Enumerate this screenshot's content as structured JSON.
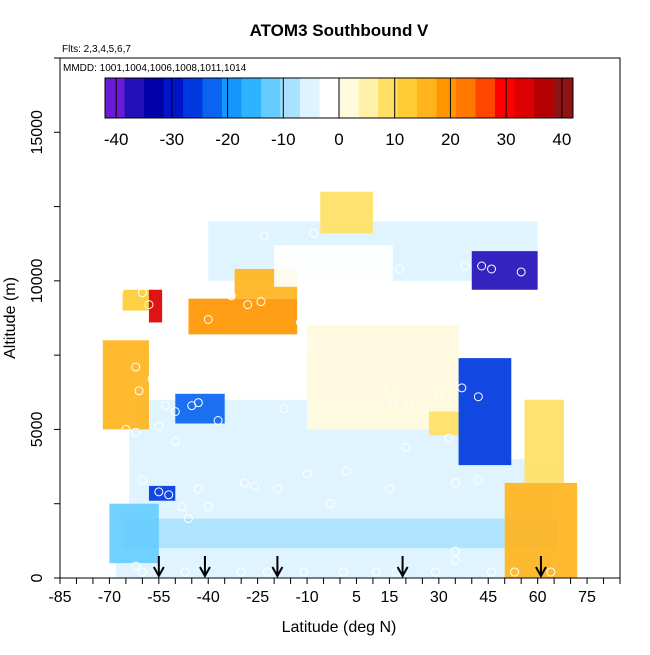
{
  "chart_data": {
    "type": "heatmap",
    "title": "ATOM3 Southbound V",
    "flights_label": "Flts: 2,3,4,5,6,7",
    "dates_label": "MMDD: 1001,1004,1006,1008,1011,1014",
    "xlabel": "Latitude (deg N)",
    "ylabel": "Altitude (m)",
    "xlim": [
      -85,
      85
    ],
    "ylim": [
      0,
      17500
    ],
    "x_ticks": [
      -85,
      -70,
      -55,
      -40,
      -25,
      -10,
      5,
      15,
      30,
      45,
      60,
      75
    ],
    "y_ticks": [
      0,
      5000,
      10000,
      15000
    ],
    "colorbar": {
      "ticks": [
        -40,
        -30,
        -20,
        -10,
        0,
        10,
        20,
        30,
        40
      ],
      "range": [
        -42,
        42
      ],
      "colors": [
        "#6a1bd6",
        "#2510b8",
        "#0000a8",
        "#0014c8",
        "#0038e0",
        "#0a64f0",
        "#1496ff",
        "#2cb4ff",
        "#66ccff",
        "#a8e2ff",
        "#ddf3ff",
        "#ffffff",
        "#fffadc",
        "#fff2a8",
        "#ffe066",
        "#ffcc33",
        "#ffb41e",
        "#ff9600",
        "#ff7800",
        "#ff4600",
        "#ff0000",
        "#dc0000",
        "#b40000",
        "#8c1414"
      ]
    },
    "surface_latitudes": [
      -55,
      -41,
      -19,
      19,
      61
    ],
    "profile_points": [
      {
        "lat": -63,
        "alt": 9900
      },
      {
        "lat": -67,
        "alt": 9700
      },
      {
        "lat": -60,
        "alt": 9600
      },
      {
        "lat": -52,
        "alt": 9800
      },
      {
        "lat": -47,
        "alt": 10400
      },
      {
        "lat": -58,
        "alt": 9200
      },
      {
        "lat": -40,
        "alt": 8700
      },
      {
        "lat": -33,
        "alt": 9500
      },
      {
        "lat": -28,
        "alt": 9200
      },
      {
        "lat": -24,
        "alt": 9300
      },
      {
        "lat": -23,
        "alt": 11500
      },
      {
        "lat": -15,
        "alt": 12600
      },
      {
        "lat": -8,
        "alt": 11600
      },
      {
        "lat": 2,
        "alt": 10400
      },
      {
        "lat": 8,
        "alt": 11000
      },
      {
        "lat": 13,
        "alt": 10400
      },
      {
        "lat": 18,
        "alt": 10400
      },
      {
        "lat": 28,
        "alt": 9300
      },
      {
        "lat": 32,
        "alt": 8800
      },
      {
        "lat": 38,
        "alt": 10500
      },
      {
        "lat": 43,
        "alt": 10500
      },
      {
        "lat": 46,
        "alt": 10400
      },
      {
        "lat": 55,
        "alt": 10300
      },
      {
        "lat": 65,
        "alt": 11800
      },
      {
        "lat": -62,
        "alt": 7100
      },
      {
        "lat": -61,
        "alt": 6300
      },
      {
        "lat": -57,
        "alt": 6700
      },
      {
        "lat": -53,
        "alt": 5800
      },
      {
        "lat": -50,
        "alt": 5600
      },
      {
        "lat": -45,
        "alt": 5800
      },
      {
        "lat": -43,
        "alt": 5900
      },
      {
        "lat": -37,
        "alt": 5300
      },
      {
        "lat": -17,
        "alt": 5700
      },
      {
        "lat": -8,
        "alt": 7900
      },
      {
        "lat": -12,
        "alt": 8600
      },
      {
        "lat": 13,
        "alt": 6500
      },
      {
        "lat": 16,
        "alt": 5900
      },
      {
        "lat": 21,
        "alt": 5900
      },
      {
        "lat": 30,
        "alt": 6100
      },
      {
        "lat": 37,
        "alt": 6400
      },
      {
        "lat": 42,
        "alt": 6100
      },
      {
        "lat": 20,
        "alt": 4400
      },
      {
        "lat": 33,
        "alt": 4700
      },
      {
        "lat": -65,
        "alt": 5000
      },
      {
        "lat": -62,
        "alt": 4900
      },
      {
        "lat": -55,
        "alt": 5100
      },
      {
        "lat": -50,
        "alt": 4600
      },
      {
        "lat": -60,
        "alt": 3300
      },
      {
        "lat": -55,
        "alt": 2900
      },
      {
        "lat": -52,
        "alt": 2800
      },
      {
        "lat": -48,
        "alt": 2400
      },
      {
        "lat": -43,
        "alt": 3000
      },
      {
        "lat": -29,
        "alt": 3200
      },
      {
        "lat": -26,
        "alt": 3100
      },
      {
        "lat": -19,
        "alt": 3000
      },
      {
        "lat": -10,
        "alt": 3500
      },
      {
        "lat": 2,
        "alt": 3600
      },
      {
        "lat": 15,
        "alt": 3000
      },
      {
        "lat": 35,
        "alt": 3200
      },
      {
        "lat": 42,
        "alt": 3300
      },
      {
        "lat": -3,
        "alt": 2500
      },
      {
        "lat": -40,
        "alt": 2400
      },
      {
        "lat": -46,
        "alt": 2000
      },
      {
        "lat": -62,
        "alt": 400
      },
      {
        "lat": -60,
        "alt": 200
      },
      {
        "lat": -47,
        "alt": 200
      },
      {
        "lat": -30,
        "alt": 200
      },
      {
        "lat": -22,
        "alt": 200
      },
      {
        "lat": -11,
        "alt": 200
      },
      {
        "lat": 1,
        "alt": 200
      },
      {
        "lat": 11,
        "alt": 200
      },
      {
        "lat": 17,
        "alt": 200
      },
      {
        "lat": 29,
        "alt": 200
      },
      {
        "lat": 35,
        "alt": 600
      },
      {
        "lat": 35,
        "alt": 900
      },
      {
        "lat": 46,
        "alt": 200
      },
      {
        "lat": 53,
        "alt": 200
      },
      {
        "lat": 64,
        "alt": 200
      }
    ],
    "v_field_sections": [
      {
        "lat_range": [
          -68,
          66
        ],
        "alt_range": [
          0,
          1000
        ],
        "value": -6
      },
      {
        "lat_range": [
          -66,
          66
        ],
        "alt_range": [
          1000,
          2000
        ],
        "value": -9
      },
      {
        "lat_range": [
          -64,
          66
        ],
        "alt_range": [
          2000,
          4000
        ],
        "value": -6
      },
      {
        "lat_range": [
          -64,
          40
        ],
        "alt_range": [
          4000,
          6000
        ],
        "value": -4
      },
      {
        "lat_range": [
          -64,
          48
        ],
        "alt_range": [
          6000,
          8000
        ],
        "value": -2
      },
      {
        "lat_range": [
          -66,
          50
        ],
        "alt_range": [
          8000,
          10000
        ],
        "value": -3
      },
      {
        "lat_range": [
          -40,
          60
        ],
        "alt_range": [
          10000,
          12000
        ],
        "value": -6
      }
    ],
    "v_field_features": [
      {
        "lat_range": [
          -72,
          -58
        ],
        "alt_range": [
          5000,
          8000
        ],
        "value": 16
      },
      {
        "lat_range": [
          -66,
          -57
        ],
        "alt_range": [
          9000,
          9700
        ],
        "value": 12
      },
      {
        "lat_range": [
          -58,
          -54
        ],
        "alt_range": [
          8600,
          9700
        ],
        "value": 32
      },
      {
        "lat_range": [
          -46,
          -13
        ],
        "alt_range": [
          8200,
          9400
        ],
        "value": 18
      },
      {
        "lat_range": [
          -32,
          -13
        ],
        "alt_range": [
          9400,
          10400
        ],
        "value": 14
      },
      {
        "lat_range": [
          -10,
          36
        ],
        "alt_range": [
          5000,
          8500
        ],
        "value": 2
      },
      {
        "lat_range": [
          27,
          36
        ],
        "alt_range": [
          4800,
          5600
        ],
        "value": 8
      },
      {
        "lat_range": [
          36,
          52
        ],
        "alt_range": [
          3800,
          7400
        ],
        "value": -26
      },
      {
        "lat_range": [
          40,
          60
        ],
        "alt_range": [
          9700,
          11000
        ],
        "value": -36
      },
      {
        "lat_range": [
          50,
          72
        ],
        "alt_range": [
          0,
          3200
        ],
        "value": 16
      },
      {
        "lat_range": [
          56,
          68
        ],
        "alt_range": [
          3200,
          6000
        ],
        "value": 8
      },
      {
        "lat_range": [
          -58,
          -50
        ],
        "alt_range": [
          2600,
          3100
        ],
        "value": -28
      },
      {
        "lat_range": [
          -70,
          -55
        ],
        "alt_range": [
          500,
          2500
        ],
        "value": -14
      },
      {
        "lat_range": [
          -6,
          10
        ],
        "alt_range": [
          11600,
          13000
        ],
        "value": 8
      },
      {
        "lat_range": [
          -50,
          -35
        ],
        "alt_range": [
          5200,
          6200
        ],
        "value": -22
      },
      {
        "lat_range": [
          -20,
          16
        ],
        "alt_range": [
          9800,
          11200
        ],
        "value": -2
      }
    ]
  }
}
